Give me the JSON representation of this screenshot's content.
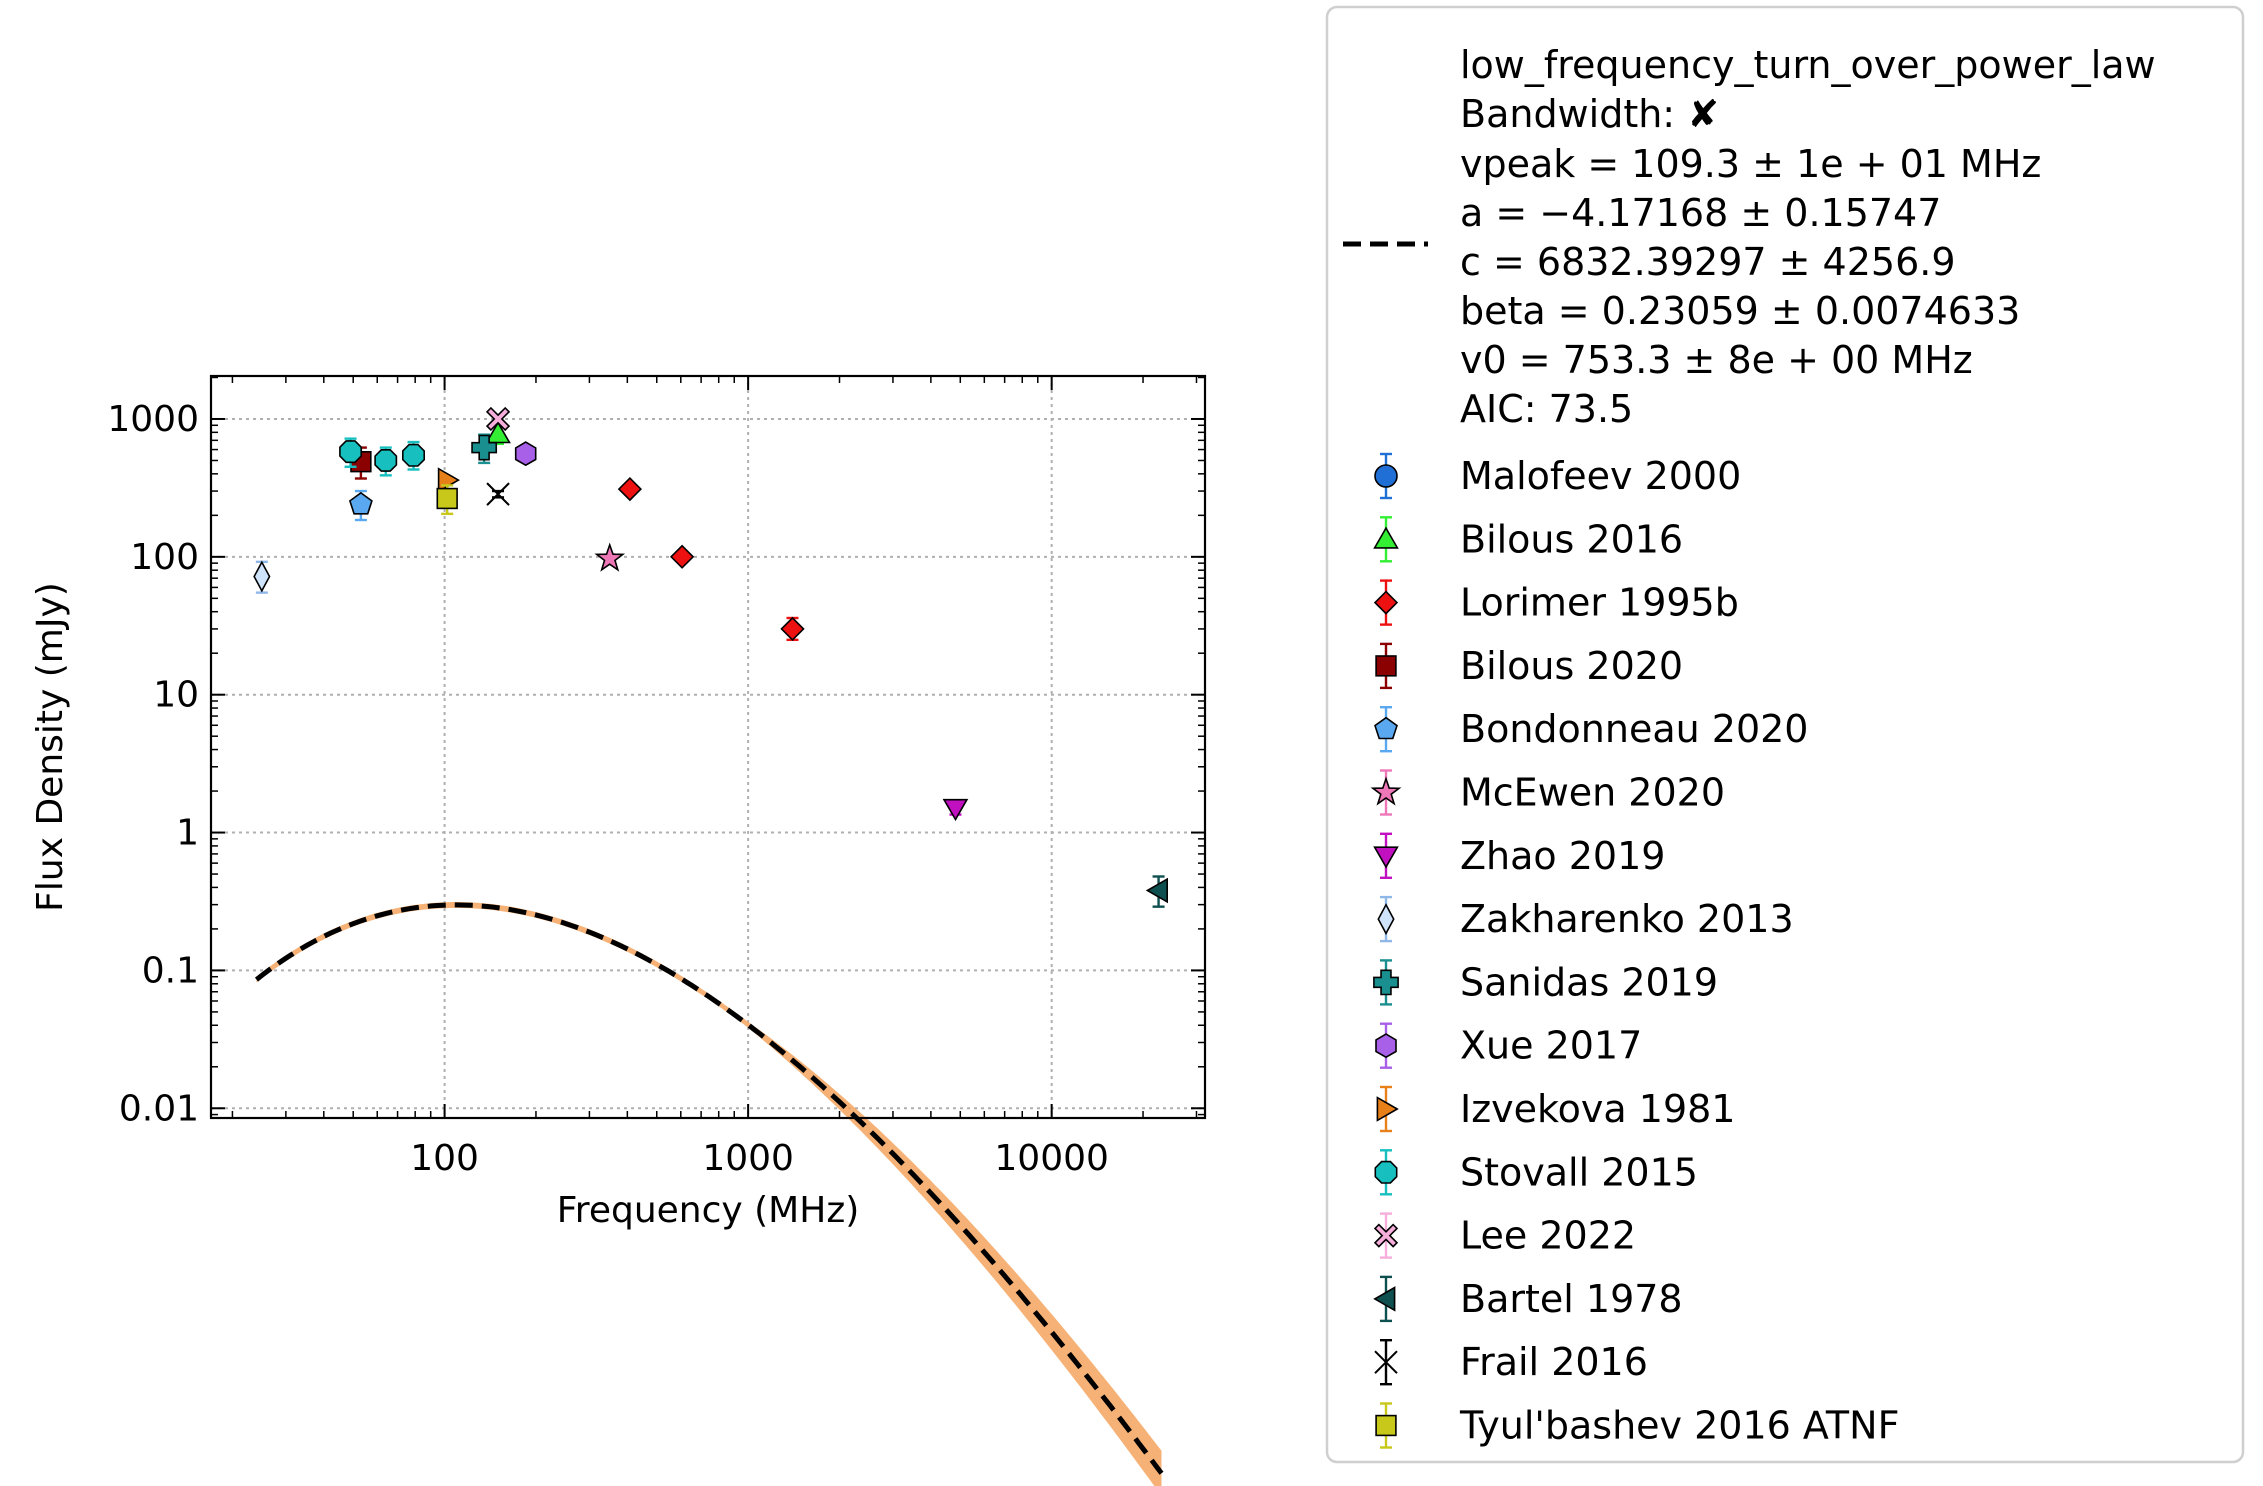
{
  "chart_data": {
    "type": "scatter",
    "xlabel": "Frequency (MHz)",
    "ylabel": "Flux Density (mJy)",
    "x_scale": "log",
    "y_scale": "log",
    "xlim": [
      17,
      32000
    ],
    "ylim": [
      0.0085,
      2050
    ],
    "grid": true,
    "legend_position": "outside-right",
    "x_ticks": [
      {
        "v": 100,
        "label": "100"
      },
      {
        "v": 1000,
        "label": "1000"
      },
      {
        "v": 10000,
        "label": "10000"
      }
    ],
    "y_ticks": [
      {
        "v": 0.01,
        "label": "0.01"
      },
      {
        "v": 0.1,
        "label": "0.1"
      },
      {
        "v": 1,
        "label": "1"
      },
      {
        "v": 10,
        "label": "10"
      },
      {
        "v": 100,
        "label": "100"
      },
      {
        "v": 1000,
        "label": "1000"
      }
    ],
    "fit": {
      "name": "low_frequency_turn_over_power_law",
      "bandwidth_label": "Bandwidth: ",
      "bandwidth_mark": "✘",
      "params": [
        "vpeak = 109.3 ± 1e + 01 MHz",
        "a = −4.17168 ± 0.15747",
        "c = 6832.39297 ± 4256.9",
        "beta = 0.23059 ± 0.0074633",
        "v0 = 753.3 ± 8e + 00 MHz",
        "AIC: 73.5"
      ],
      "vpeak": 109.3,
      "a": -4.17168,
      "c": 6832.39297,
      "beta": 0.23059,
      "v0": 753.3,
      "x_range": [
        24,
        23000
      ],
      "line_color": "#000000",
      "band_color": "#f5a45e"
    },
    "series": [
      {
        "name": "Malofeev 2000",
        "marker": "circle",
        "color": "#1f6fd6",
        "ecolor": "#1f6fd6",
        "points": []
      },
      {
        "name": "Bilous 2016",
        "marker": "triangle-up",
        "color": "#33ee33",
        "ecolor": "#33ee33",
        "points": [
          {
            "x": 150,
            "y": 780,
            "lo": 660,
            "hi": 900
          }
        ]
      },
      {
        "name": "Lorimer 1995b",
        "marker": "diamond",
        "color": "#ee1111",
        "ecolor": "#ee1111",
        "points": [
          {
            "x": 408,
            "y": 310,
            "lo": 290,
            "hi": 330
          },
          {
            "x": 606,
            "y": 100,
            "lo": 92,
            "hi": 108
          },
          {
            "x": 1400,
            "y": 30,
            "lo": 25,
            "hi": 36
          }
        ]
      },
      {
        "name": "Bilous 2020",
        "marker": "square",
        "color": "#8b0000",
        "ecolor": "#8b0000",
        "points": [
          {
            "x": 53,
            "y": 490,
            "lo": 370,
            "hi": 620
          }
        ]
      },
      {
        "name": "Bondonneau 2020",
        "marker": "pentagon",
        "color": "#5aa9f0",
        "ecolor": "#5aa9f0",
        "points": [
          {
            "x": 53,
            "y": 240,
            "lo": 185,
            "hi": 300
          }
        ]
      },
      {
        "name": "McEwen 2020",
        "marker": "star",
        "color": "#ee77b8",
        "ecolor": "#ee77b8",
        "points": [
          {
            "x": 350,
            "y": 97,
            "lo": 90,
            "hi": 104
          }
        ]
      },
      {
        "name": "Zhao 2019",
        "marker": "triangle-down",
        "color": "#c010c0",
        "ecolor": "#c010c0",
        "points": [
          {
            "x": 4820,
            "y": 1.5,
            "lo": 1.35,
            "hi": 1.65
          }
        ]
      },
      {
        "name": "Zakharenko 2013",
        "marker": "thin-diamond",
        "color": "#cfe3fb",
        "ecolor": "#8fb8e8",
        "points": [
          {
            "x": 25,
            "y": 72,
            "lo": 55,
            "hi": 92
          }
        ]
      },
      {
        "name": "Sanidas 2019",
        "marker": "plus",
        "color": "#1a8f8f",
        "ecolor": "#1a8f8f",
        "points": [
          {
            "x": 135,
            "y": 620,
            "lo": 480,
            "hi": 770
          }
        ]
      },
      {
        "name": "Xue 2017",
        "marker": "hexagon",
        "color": "#a860e8",
        "ecolor": "#a860e8",
        "points": [
          {
            "x": 185,
            "y": 560,
            "lo": 540,
            "hi": 580
          }
        ]
      },
      {
        "name": "Izvekova 1981",
        "marker": "triangle-right",
        "color": "#e8801a",
        "ecolor": "#e8801a",
        "points": [
          {
            "x": 102,
            "y": 360,
            "lo": 340,
            "hi": 380
          }
        ]
      },
      {
        "name": "Stovall 2015",
        "marker": "octagon",
        "color": "#17bfbf",
        "ecolor": "#17bfbf",
        "points": [
          {
            "x": 49,
            "y": 580,
            "lo": 450,
            "hi": 720
          },
          {
            "x": 64,
            "y": 500,
            "lo": 390,
            "hi": 620
          },
          {
            "x": 79,
            "y": 545,
            "lo": 430,
            "hi": 680
          }
        ]
      },
      {
        "name": "Lee 2022",
        "marker": "x-filled",
        "color": "#f6aedb",
        "ecolor": "#f6aedb",
        "points": [
          {
            "x": 150,
            "y": 1000,
            "lo": 960,
            "hi": 1040
          }
        ]
      },
      {
        "name": "Bartel 1978",
        "marker": "triangle-left",
        "color": "#0e4f4f",
        "ecolor": "#0e4f4f",
        "points": [
          {
            "x": 22500,
            "y": 0.38,
            "lo": 0.29,
            "hi": 0.48
          }
        ]
      },
      {
        "name": "Frail 2016",
        "marker": "x-thin",
        "color": "#000000",
        "ecolor": "#000000",
        "points": [
          {
            "x": 150,
            "y": 285,
            "lo": 270,
            "hi": 300
          }
        ]
      },
      {
        "name": "Tyul'bashev 2016 ATNF",
        "marker": "square",
        "color": "#c8c81a",
        "ecolor": "#c8c81a",
        "points": [
          {
            "x": 102,
            "y": 265,
            "lo": 205,
            "hi": 330
          }
        ]
      }
    ]
  }
}
